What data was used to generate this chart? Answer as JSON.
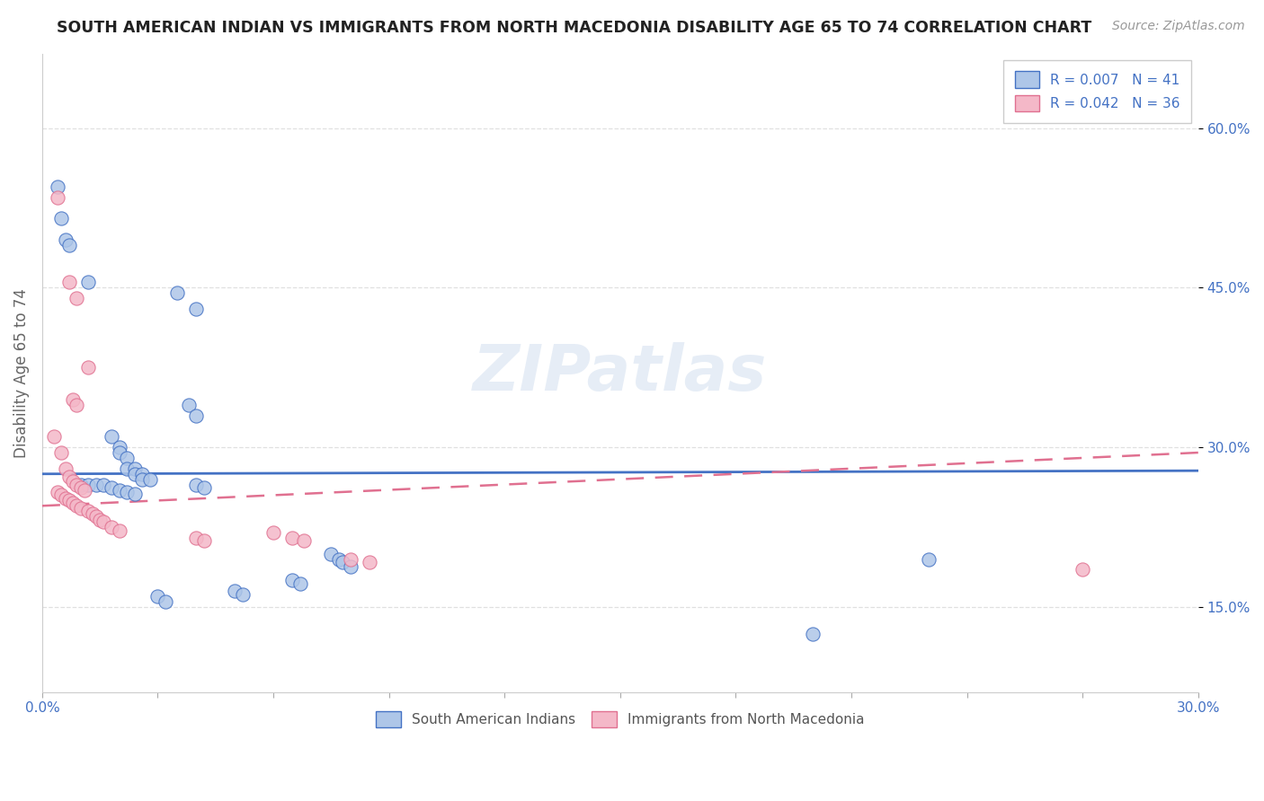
{
  "title": "SOUTH AMERICAN INDIAN VS IMMIGRANTS FROM NORTH MACEDONIA DISABILITY AGE 65 TO 74 CORRELATION CHART",
  "source": "Source: ZipAtlas.com",
  "ylabel": "Disability Age 65 to 74",
  "xlim": [
    0.0,
    0.3
  ],
  "ylim": [
    0.07,
    0.67
  ],
  "yticks": [
    0.15,
    0.3,
    0.45,
    0.6
  ],
  "ytick_labels": [
    "15.0%",
    "30.0%",
    "45.0%",
    "60.0%"
  ],
  "xticks": [
    0.0,
    0.03,
    0.06,
    0.09,
    0.12,
    0.15,
    0.18,
    0.21,
    0.24,
    0.27,
    0.3
  ],
  "xtick_labels": [
    "0.0%",
    "",
    "",
    "",
    "",
    "",
    "",
    "",
    "",
    "",
    "30.0%"
  ],
  "blue_label": "South American Indians",
  "pink_label": "Immigrants from North Macedonia",
  "R_blue": "0.007",
  "N_blue": "41",
  "R_pink": "0.042",
  "N_pink": "36",
  "blue_color": "#aec6e8",
  "pink_color": "#f4b8c8",
  "blue_line_color": "#4472c4",
  "pink_line_color": "#e07090",
  "blue_trend": [
    0.275,
    0.278
  ],
  "pink_trend": [
    0.245,
    0.295
  ],
  "blue_scatter": [
    [
      0.004,
      0.545
    ],
    [
      0.005,
      0.515
    ],
    [
      0.006,
      0.495
    ],
    [
      0.007,
      0.49
    ],
    [
      0.012,
      0.455
    ],
    [
      0.035,
      0.445
    ],
    [
      0.04,
      0.43
    ],
    [
      0.038,
      0.34
    ],
    [
      0.04,
      0.33
    ],
    [
      0.018,
      0.31
    ],
    [
      0.02,
      0.3
    ],
    [
      0.02,
      0.295
    ],
    [
      0.022,
      0.29
    ],
    [
      0.022,
      0.28
    ],
    [
      0.024,
      0.28
    ],
    [
      0.024,
      0.275
    ],
    [
      0.026,
      0.275
    ],
    [
      0.026,
      0.27
    ],
    [
      0.028,
      0.27
    ],
    [
      0.01,
      0.265
    ],
    [
      0.012,
      0.265
    ],
    [
      0.014,
      0.265
    ],
    [
      0.016,
      0.265
    ],
    [
      0.018,
      0.262
    ],
    [
      0.02,
      0.26
    ],
    [
      0.022,
      0.258
    ],
    [
      0.024,
      0.256
    ],
    [
      0.04,
      0.265
    ],
    [
      0.042,
      0.262
    ],
    [
      0.075,
      0.2
    ],
    [
      0.077,
      0.195
    ],
    [
      0.078,
      0.192
    ],
    [
      0.08,
      0.188
    ],
    [
      0.065,
      0.175
    ],
    [
      0.067,
      0.172
    ],
    [
      0.05,
      0.165
    ],
    [
      0.052,
      0.162
    ],
    [
      0.03,
      0.16
    ],
    [
      0.032,
      0.155
    ],
    [
      0.23,
      0.195
    ],
    [
      0.2,
      0.125
    ]
  ],
  "pink_scatter": [
    [
      0.004,
      0.535
    ],
    [
      0.007,
      0.455
    ],
    [
      0.009,
      0.44
    ],
    [
      0.012,
      0.375
    ],
    [
      0.008,
      0.345
    ],
    [
      0.009,
      0.34
    ],
    [
      0.003,
      0.31
    ],
    [
      0.005,
      0.295
    ],
    [
      0.006,
      0.28
    ],
    [
      0.007,
      0.272
    ],
    [
      0.008,
      0.268
    ],
    [
      0.009,
      0.265
    ],
    [
      0.01,
      0.262
    ],
    [
      0.011,
      0.26
    ],
    [
      0.004,
      0.258
    ],
    [
      0.005,
      0.255
    ],
    [
      0.006,
      0.252
    ],
    [
      0.007,
      0.25
    ],
    [
      0.008,
      0.248
    ],
    [
      0.009,
      0.245
    ],
    [
      0.01,
      0.243
    ],
    [
      0.012,
      0.24
    ],
    [
      0.013,
      0.238
    ],
    [
      0.014,
      0.235
    ],
    [
      0.015,
      0.232
    ],
    [
      0.016,
      0.23
    ],
    [
      0.018,
      0.225
    ],
    [
      0.02,
      0.222
    ],
    [
      0.04,
      0.215
    ],
    [
      0.042,
      0.212
    ],
    [
      0.06,
      0.22
    ],
    [
      0.065,
      0.215
    ],
    [
      0.068,
      0.212
    ],
    [
      0.08,
      0.195
    ],
    [
      0.085,
      0.192
    ],
    [
      0.27,
      0.185
    ]
  ],
  "watermark": "ZIPatlas",
  "background_color": "#ffffff",
  "grid_color": "#dddddd"
}
